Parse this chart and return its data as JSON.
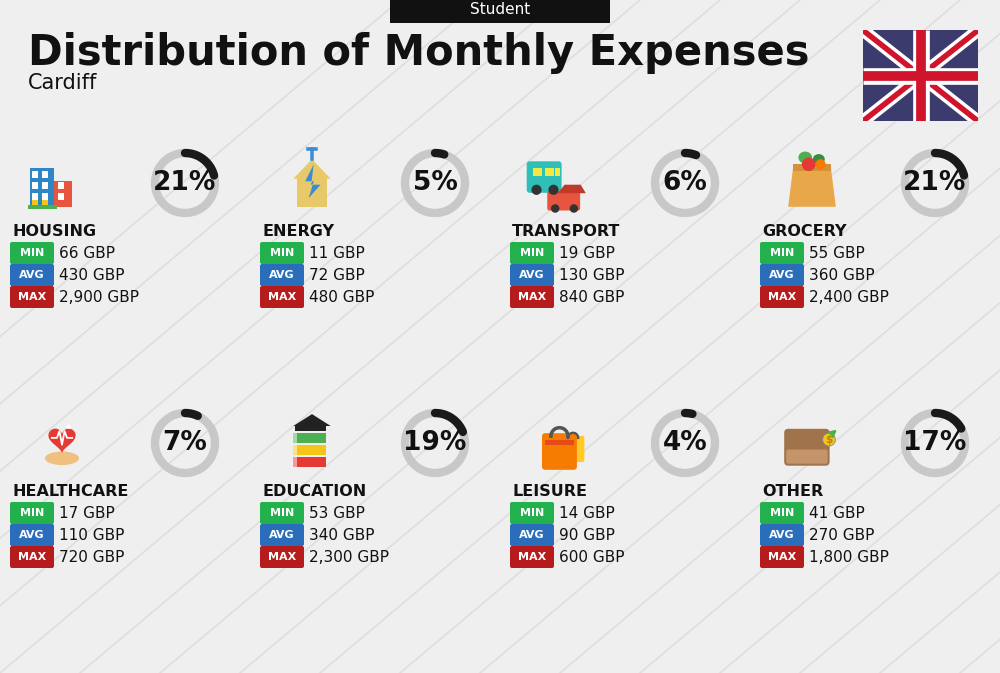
{
  "title": "Distribution of Monthly Expenses",
  "subtitle": "Cardiff",
  "header_label": "Student",
  "bg_color": "#efefef",
  "categories": [
    {
      "name": "HOUSING",
      "percent": 21,
      "min": "66 GBP",
      "avg": "430 GBP",
      "max": "2,900 GBP",
      "col": 0,
      "row": 0
    },
    {
      "name": "ENERGY",
      "percent": 5,
      "min": "11 GBP",
      "avg": "72 GBP",
      "max": "480 GBP",
      "col": 1,
      "row": 0
    },
    {
      "name": "TRANSPORT",
      "percent": 6,
      "min": "19 GBP",
      "avg": "130 GBP",
      "max": "840 GBP",
      "col": 2,
      "row": 0
    },
    {
      "name": "GROCERY",
      "percent": 21,
      "min": "55 GBP",
      "avg": "360 GBP",
      "max": "2,400 GBP",
      "col": 3,
      "row": 0
    },
    {
      "name": "HEALTHCARE",
      "percent": 7,
      "min": "17 GBP",
      "avg": "110 GBP",
      "max": "720 GBP",
      "col": 0,
      "row": 1
    },
    {
      "name": "EDUCATION",
      "percent": 19,
      "min": "53 GBP",
      "avg": "340 GBP",
      "max": "2,300 GBP",
      "col": 1,
      "row": 1
    },
    {
      "name": "LEISURE",
      "percent": 4,
      "min": "14 GBP",
      "avg": "90 GBP",
      "max": "600 GBP",
      "col": 2,
      "row": 1
    },
    {
      "name": "OTHER",
      "percent": 17,
      "min": "41 GBP",
      "avg": "270 GBP",
      "max": "1,800 GBP",
      "col": 3,
      "row": 1
    }
  ],
  "min_color": "#22b14c",
  "avg_color": "#2a6ebb",
  "max_color": "#b71c1c",
  "arc_dark": "#1a1a1a",
  "arc_light": "#c8c8c8",
  "title_fontsize": 30,
  "subtitle_fontsize": 15,
  "cat_fontsize": 11.5,
  "val_fontsize": 11,
  "pct_fontsize": 19,
  "badge_label_fontsize": 8,
  "header_fontsize": 11
}
